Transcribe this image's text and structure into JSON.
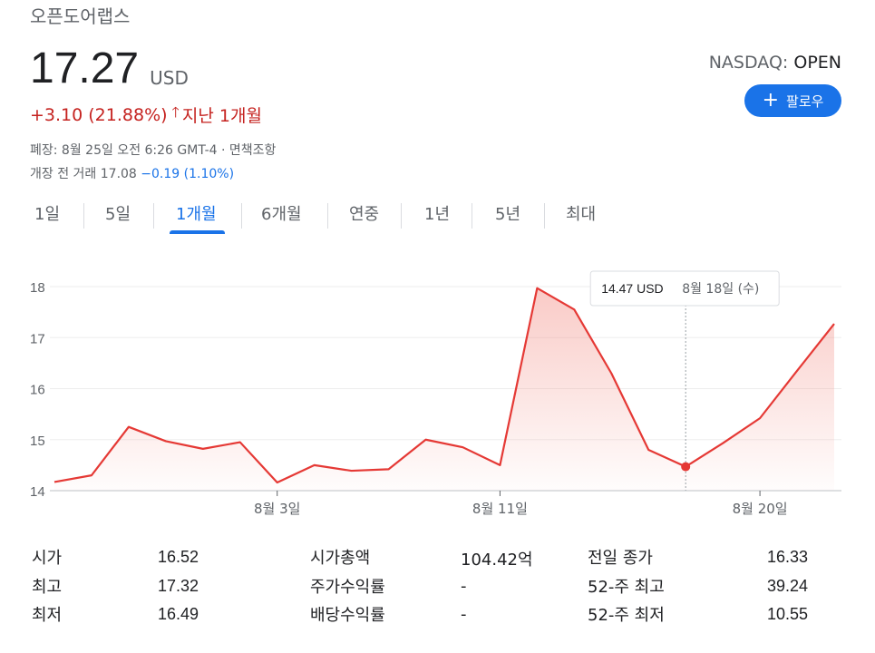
{
  "header": {
    "company_name": "오픈도어랩스",
    "price": "17.27",
    "currency": "USD",
    "change_text": "+3.10 (21.88%)",
    "change_arrow": "🡑",
    "change_period": "지난 1개월",
    "close_info": "폐장: 8월 25일 오전 6:26 GMT-4 · 면책조항",
    "premarket_label": "개장 전 거래 17.08",
    "premarket_change": "−0.19 (1.10%)",
    "exchange": "NASDAQ:",
    "market_state": "OPEN",
    "follow_label": "팔로우"
  },
  "tabs": [
    {
      "label": "1일",
      "active": false
    },
    {
      "label": "5일",
      "active": false
    },
    {
      "label": "1개월",
      "active": true
    },
    {
      "label": "6개월",
      "active": false
    },
    {
      "label": "연중",
      "active": false
    },
    {
      "label": "1년",
      "active": false
    },
    {
      "label": "5년",
      "active": false
    },
    {
      "label": "최대",
      "active": false
    }
  ],
  "chart_data": {
    "type": "area",
    "title": "",
    "xlabel": "",
    "ylabel": "",
    "ylim": [
      14,
      18
    ],
    "yticks": [
      14,
      15,
      16,
      17,
      18
    ],
    "grid": true,
    "series": [
      {
        "values": [
          14.17,
          14.3,
          15.25,
          14.97,
          14.82,
          14.95,
          14.16,
          14.5,
          14.39,
          14.42,
          15.0,
          14.85,
          14.5,
          17.97,
          17.55,
          16.3,
          14.8,
          14.47,
          14.93,
          15.42,
          16.35,
          17.27
        ]
      }
    ],
    "x_tick_labels": [
      {
        "label": "8월 3일",
        "index": 6
      },
      {
        "label": "8월 11일",
        "index": 12
      },
      {
        "label": "8월 20일",
        "index": 19
      }
    ],
    "tooltip": {
      "price": "14.47 USD",
      "date": "8월 18일 (수)",
      "index": 17
    },
    "colors": {
      "line": "#e53935",
      "fill": "#f28b82",
      "grid": "#eeeeee",
      "axis": "#5f6368"
    }
  },
  "stats": {
    "col1": [
      {
        "label": "시가",
        "value": "16.52"
      },
      {
        "label": "최고",
        "value": "17.32"
      },
      {
        "label": "최저",
        "value": "16.49"
      }
    ],
    "col2": [
      {
        "label": "시가총액",
        "value": "104.42억"
      },
      {
        "label": "주가수익률",
        "value": "-"
      },
      {
        "label": "배당수익률",
        "value": "-"
      }
    ],
    "col3": [
      {
        "label": "전일 종가",
        "value": "16.33"
      },
      {
        "label": "52-주 최고",
        "value": "39.24"
      },
      {
        "label": "52-주 최저",
        "value": "10.55"
      }
    ]
  }
}
